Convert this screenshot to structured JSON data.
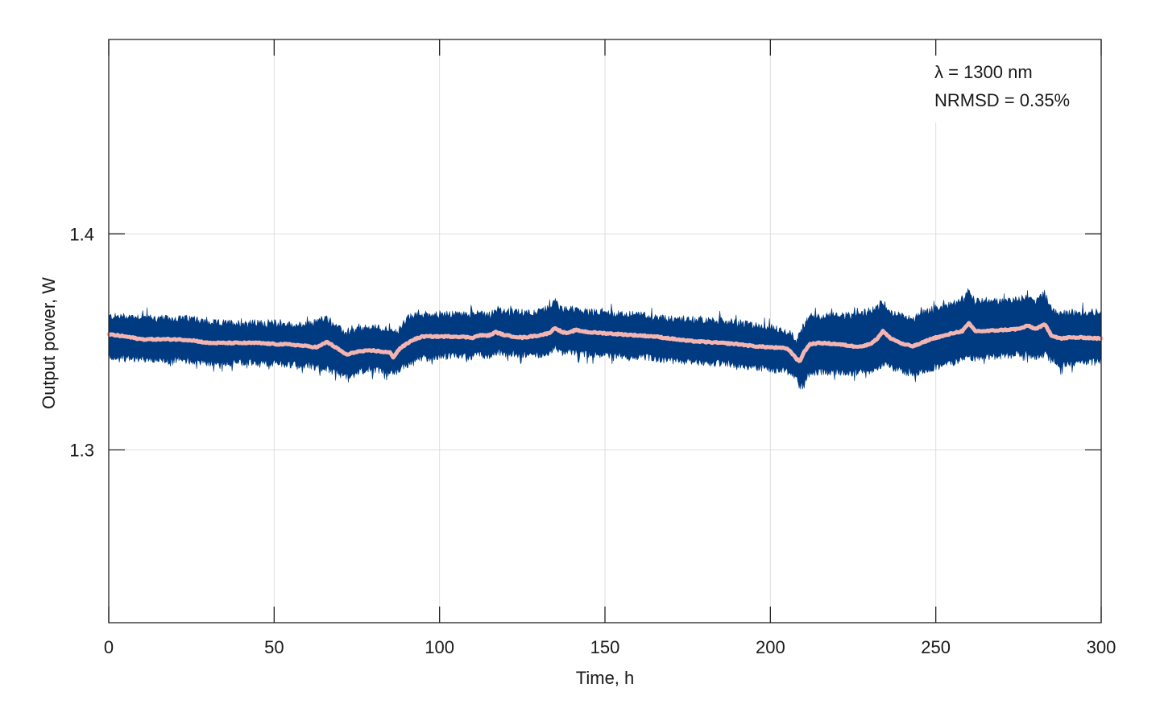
{
  "chart_data": {
    "type": "line",
    "title": "",
    "xlabel": "Time, h",
    "ylabel": "Output power, W",
    "xlim": [
      0,
      300
    ],
    "ylim": [
      1.22,
      1.49
    ],
    "xticks": [
      0,
      50,
      100,
      150,
      200,
      250,
      300
    ],
    "xtick_labels": [
      "0",
      "50",
      "100",
      "150",
      "200",
      "250",
      "300"
    ],
    "yticks": [
      1.3,
      1.4
    ],
    "ytick_labels": [
      "1.3",
      "1.4"
    ],
    "grid": true,
    "legend": "none",
    "annotations": [
      "λ = 1300 nm",
      "NRMSD = 0.35%"
    ],
    "colors": {
      "raw": "#003a80",
      "smoothed": "#f4b4b0",
      "grid": "#dedede",
      "axis": "#222222"
    },
    "series": [
      {
        "kind": "band",
        "description_visible": false,
        "x": [
          0,
          5,
          10,
          15,
          20,
          25,
          30,
          35,
          40,
          45,
          50,
          55,
          60,
          63,
          66,
          69,
          72,
          75,
          80,
          85,
          86,
          88,
          90,
          92,
          95,
          100,
          105,
          110,
          112,
          115,
          117,
          120,
          125,
          130,
          133,
          135,
          137,
          139,
          141,
          145,
          150,
          155,
          160,
          165,
          170,
          175,
          180,
          185,
          190,
          195,
          200,
          205,
          207,
          208,
          209,
          210,
          212,
          215,
          220,
          225,
          228,
          230,
          232,
          234,
          236,
          240,
          243,
          245,
          248,
          250,
          253,
          255,
          258,
          260,
          262,
          265,
          270,
          275,
          278,
          280,
          283,
          285,
          288,
          290,
          295,
          300
        ],
        "lower": [
          1.344,
          1.343,
          1.343,
          1.342,
          1.342,
          1.342,
          1.341,
          1.341,
          1.341,
          1.341,
          1.341,
          1.34,
          1.34,
          1.339,
          1.338,
          1.336,
          1.335,
          1.337,
          1.338,
          1.337,
          1.336,
          1.338,
          1.34,
          1.342,
          1.343,
          1.344,
          1.344,
          1.344,
          1.345,
          1.344,
          1.346,
          1.345,
          1.345,
          1.345,
          1.346,
          1.348,
          1.346,
          1.347,
          1.346,
          1.345,
          1.345,
          1.344,
          1.344,
          1.343,
          1.342,
          1.342,
          1.341,
          1.341,
          1.34,
          1.339,
          1.338,
          1.337,
          1.335,
          1.333,
          1.33,
          1.333,
          1.336,
          1.337,
          1.337,
          1.336,
          1.337,
          1.337,
          1.338,
          1.341,
          1.339,
          1.337,
          1.336,
          1.337,
          1.338,
          1.339,
          1.34,
          1.341,
          1.343,
          1.344,
          1.343,
          1.344,
          1.344,
          1.345,
          1.345,
          1.344,
          1.345,
          1.342,
          1.34,
          1.341,
          1.341,
          1.342
        ],
        "upper": [
          1.361,
          1.361,
          1.361,
          1.36,
          1.36,
          1.36,
          1.358,
          1.358,
          1.358,
          1.358,
          1.358,
          1.357,
          1.357,
          1.359,
          1.36,
          1.356,
          1.353,
          1.355,
          1.356,
          1.355,
          1.353,
          1.355,
          1.36,
          1.361,
          1.362,
          1.362,
          1.362,
          1.362,
          1.363,
          1.362,
          1.364,
          1.363,
          1.363,
          1.363,
          1.365,
          1.368,
          1.364,
          1.365,
          1.364,
          1.363,
          1.363,
          1.362,
          1.362,
          1.361,
          1.36,
          1.36,
          1.359,
          1.359,
          1.358,
          1.357,
          1.356,
          1.354,
          1.352,
          1.35,
          1.353,
          1.357,
          1.361,
          1.361,
          1.362,
          1.361,
          1.362,
          1.364,
          1.365,
          1.368,
          1.363,
          1.361,
          1.36,
          1.362,
          1.364,
          1.365,
          1.366,
          1.367,
          1.369,
          1.372,
          1.368,
          1.368,
          1.368,
          1.369,
          1.37,
          1.368,
          1.372,
          1.364,
          1.362,
          1.363,
          1.363,
          1.363
        ]
      },
      {
        "kind": "line",
        "description_visible": false,
        "x": [
          0,
          5,
          10,
          15,
          20,
          25,
          30,
          35,
          40,
          45,
          50,
          55,
          60,
          63,
          66,
          69,
          72,
          75,
          80,
          85,
          86,
          88,
          90,
          92,
          95,
          100,
          105,
          110,
          112,
          115,
          117,
          120,
          125,
          130,
          133,
          135,
          137,
          139,
          141,
          145,
          150,
          155,
          160,
          165,
          170,
          175,
          180,
          185,
          190,
          195,
          200,
          205,
          207,
          208,
          209,
          210,
          212,
          215,
          220,
          225,
          228,
          230,
          232,
          234,
          236,
          240,
          243,
          245,
          248,
          250,
          253,
          255,
          258,
          260,
          262,
          265,
          270,
          275,
          278,
          280,
          283,
          285,
          288,
          290,
          295,
          300
        ],
        "y": [
          1.3535,
          1.3525,
          1.3512,
          1.3512,
          1.3512,
          1.3508,
          1.3495,
          1.3495,
          1.3495,
          1.3495,
          1.349,
          1.3488,
          1.348,
          1.3475,
          1.35,
          1.347,
          1.344,
          1.3455,
          1.346,
          1.345,
          1.343,
          1.347,
          1.349,
          1.351,
          1.3525,
          1.3525,
          1.3525,
          1.352,
          1.353,
          1.353,
          1.3545,
          1.353,
          1.352,
          1.353,
          1.354,
          1.3565,
          1.3545,
          1.354,
          1.3555,
          1.3545,
          1.354,
          1.3535,
          1.353,
          1.3525,
          1.3515,
          1.3505,
          1.35,
          1.3495,
          1.349,
          1.348,
          1.3475,
          1.347,
          1.344,
          1.342,
          1.341,
          1.345,
          1.349,
          1.3495,
          1.349,
          1.348,
          1.348,
          1.349,
          1.351,
          1.355,
          1.352,
          1.349,
          1.348,
          1.349,
          1.351,
          1.352,
          1.353,
          1.354,
          1.355,
          1.3585,
          1.355,
          1.355,
          1.3555,
          1.356,
          1.3575,
          1.356,
          1.358,
          1.353,
          1.3515,
          1.352,
          1.352,
          1.3515
        ]
      }
    ]
  }
}
